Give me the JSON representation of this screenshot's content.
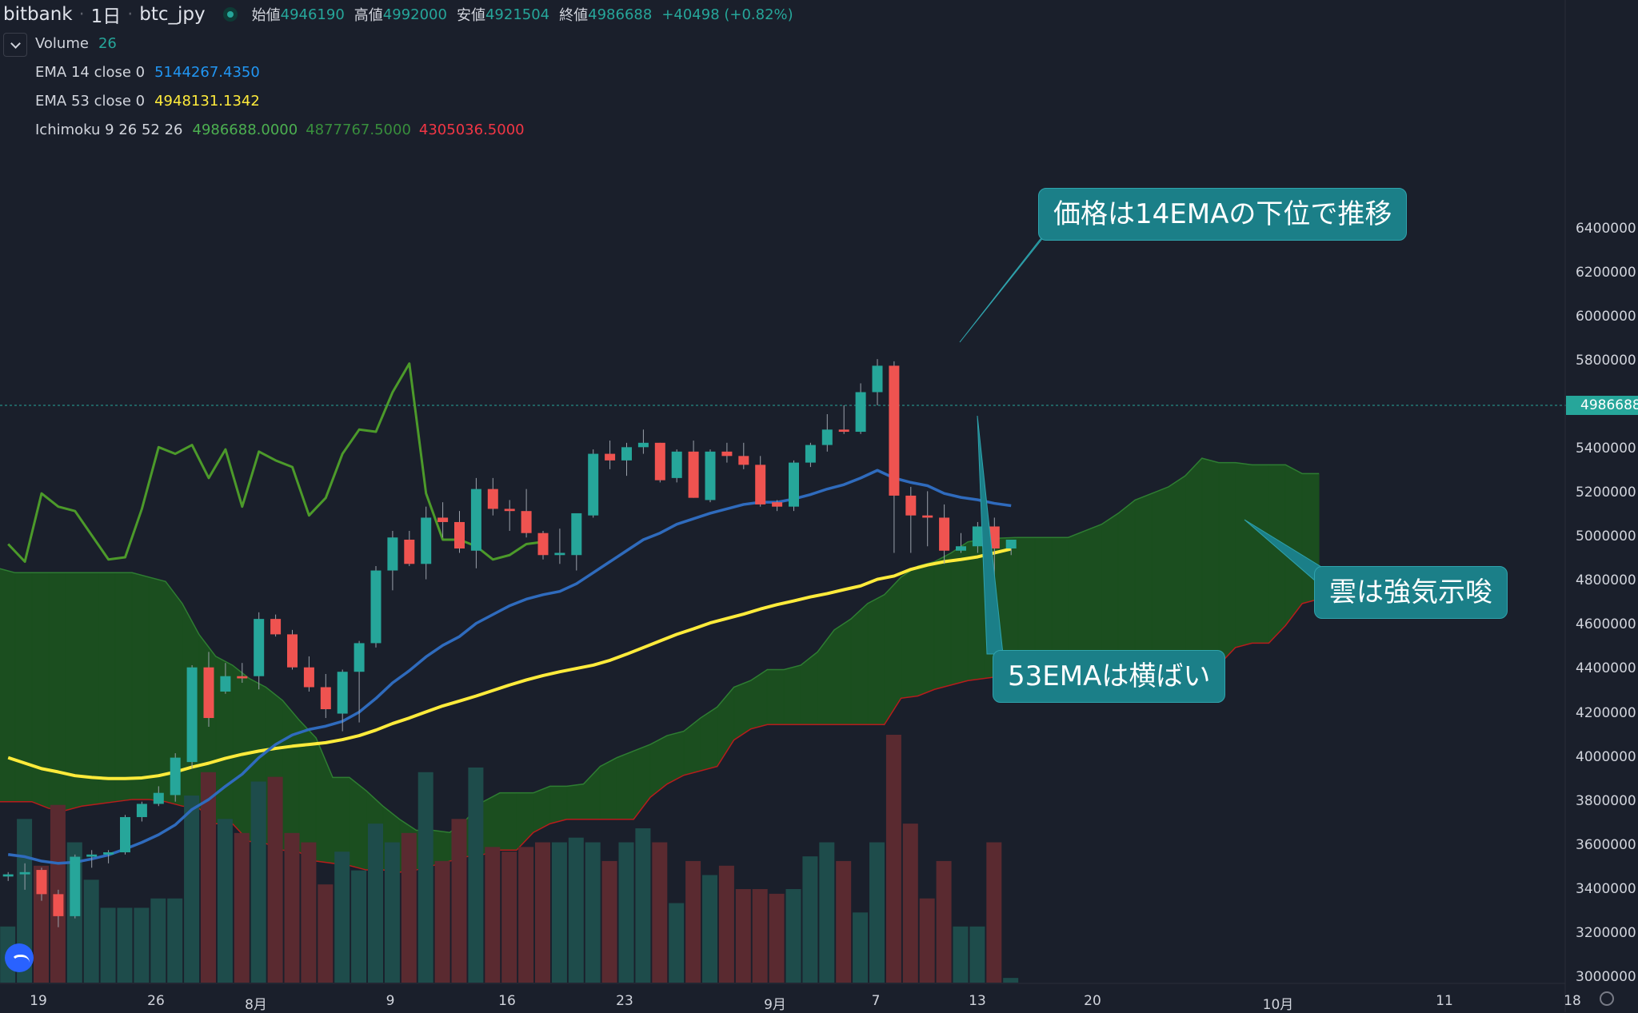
{
  "header": {
    "exchange": "bitbank",
    "interval": "1日",
    "symbol": "btc_jpy",
    "ohlc": [
      {
        "label": "始値",
        "value": "4946190"
      },
      {
        "label": "高値",
        "value": "4992000"
      },
      {
        "label": "安値",
        "value": "4921504"
      },
      {
        "label": "終値",
        "value": "4986688"
      }
    ],
    "change": "+40498 (+0.82%)"
  },
  "indicators": {
    "volume": {
      "name": "Volume",
      "value": "26"
    },
    "ema14": {
      "name": "EMA 14 close 0",
      "value": "5144267.4350",
      "color": "#2196f3"
    },
    "ema53": {
      "name": "EMA 53 close 0",
      "value": "4948131.1342",
      "color": "#ffeb3b"
    },
    "ichimoku": {
      "name": "Ichimoku 9 26 52 26",
      "v1": "4986688.0000",
      "v2": "4877767.5000",
      "v3": "4305036.5000",
      "c1": "#4caf50",
      "c2": "#388e3c",
      "c3": "#f23645"
    }
  },
  "annotations": {
    "a1": "価格は14EMAの下位で推移",
    "a2": "雲は強気示唆",
    "a3": "53EMAは横ばい"
  },
  "price_tag": "4986688",
  "colors": {
    "up": "#26a69a",
    "down": "#ef5350",
    "background": "#1a1f2b",
    "bear_cloud": "#7f1519",
    "bull_cloud": "#1b4e1f"
  },
  "y_ticks": [
    "6400000",
    "6200000",
    "6000000",
    "5800000",
    "5600000",
    "5400000",
    "5200000",
    "5000000",
    "4800000",
    "4600000",
    "4400000",
    "4200000",
    "4000000",
    "3800000",
    "3600000",
    "3400000",
    "3200000",
    "3000000"
  ],
  "x_ticks": [
    "19",
    "26",
    "8月",
    "9",
    "16",
    "23",
    "9月",
    "7",
    "13",
    "20",
    "10月",
    "11",
    "18"
  ],
  "chart_data": {
    "type": "candlestick",
    "y_range": [
      3000000,
      6400000
    ],
    "ohlc": [
      [
        3460000,
        3480000,
        3440000,
        3470000
      ],
      [
        3470000,
        3520000,
        3400000,
        3480000
      ],
      [
        3490000,
        3500000,
        3350000,
        3380000
      ],
      [
        3380000,
        3400000,
        3230000,
        3280000
      ],
      [
        3280000,
        3560000,
        3270000,
        3550000
      ],
      [
        3550000,
        3580000,
        3500000,
        3560000
      ],
      [
        3560000,
        3580000,
        3520000,
        3570000
      ],
      [
        3570000,
        3740000,
        3560000,
        3730000
      ],
      [
        3730000,
        3800000,
        3710000,
        3790000
      ],
      [
        3790000,
        3870000,
        3780000,
        3840000
      ],
      [
        3830000,
        4020000,
        3800000,
        4000000
      ],
      [
        3980000,
        4420000,
        3950000,
        4410000
      ],
      [
        4410000,
        4480000,
        4140000,
        4180000
      ],
      [
        4300000,
        4430000,
        4290000,
        4370000
      ],
      [
        4370000,
        4430000,
        4340000,
        4360000
      ],
      [
        4370000,
        4660000,
        4310000,
        4630000
      ],
      [
        4630000,
        4650000,
        4550000,
        4560000
      ],
      [
        4560000,
        4580000,
        4400000,
        4410000
      ],
      [
        4410000,
        4460000,
        4300000,
        4320000
      ],
      [
        4320000,
        4380000,
        4180000,
        4220000
      ],
      [
        4200000,
        4400000,
        4120000,
        4390000
      ],
      [
        4390000,
        4530000,
        4160000,
        4520000
      ],
      [
        4520000,
        4870000,
        4500000,
        4850000
      ],
      [
        4850000,
        5030000,
        4760000,
        5000000
      ],
      [
        4990000,
        5030000,
        4870000,
        4880000
      ],
      [
        4880000,
        5140000,
        4810000,
        5090000
      ],
      [
        5090000,
        5160000,
        5000000,
        5070000
      ],
      [
        5070000,
        5120000,
        4930000,
        4950000
      ],
      [
        4940000,
        5270000,
        4860000,
        5220000
      ],
      [
        5220000,
        5270000,
        5100000,
        5130000
      ],
      [
        5130000,
        5170000,
        5030000,
        5120000
      ],
      [
        5120000,
        5220000,
        5000000,
        5020000
      ],
      [
        5020000,
        5030000,
        4900000,
        4920000
      ],
      [
        4920000,
        5040000,
        4880000,
        4930000
      ],
      [
        4920000,
        5100000,
        4850000,
        5110000
      ],
      [
        5100000,
        5400000,
        5090000,
        5380000
      ],
      [
        5380000,
        5440000,
        5310000,
        5350000
      ],
      [
        5350000,
        5430000,
        5280000,
        5410000
      ],
      [
        5410000,
        5490000,
        5380000,
        5430000
      ],
      [
        5430000,
        5430000,
        5250000,
        5260000
      ],
      [
        5270000,
        5400000,
        5250000,
        5390000
      ],
      [
        5390000,
        5440000,
        5180000,
        5180000
      ],
      [
        5170000,
        5400000,
        5160000,
        5390000
      ],
      [
        5390000,
        5430000,
        5340000,
        5370000
      ],
      [
        5370000,
        5430000,
        5310000,
        5330000
      ],
      [
        5330000,
        5370000,
        5140000,
        5150000
      ],
      [
        5160000,
        5170000,
        5120000,
        5140000
      ],
      [
        5140000,
        5350000,
        5120000,
        5340000
      ],
      [
        5340000,
        5430000,
        5320000,
        5420000
      ],
      [
        5420000,
        5560000,
        5390000,
        5490000
      ],
      [
        5490000,
        5600000,
        5470000,
        5480000
      ],
      [
        5480000,
        5700000,
        5470000,
        5660000
      ],
      [
        5660000,
        5810000,
        5600000,
        5780000
      ],
      [
        5780000,
        5800000,
        4930000,
        5190000
      ],
      [
        5190000,
        5230000,
        4930000,
        5100000
      ],
      [
        5100000,
        5210000,
        4960000,
        5090000
      ],
      [
        5090000,
        5150000,
        4880000,
        4940000
      ],
      [
        4940000,
        5020000,
        4930000,
        4960000
      ],
      [
        4960000,
        5070000,
        4930000,
        5050000
      ],
      [
        5050000,
        5090000,
        4800000,
        4950000
      ],
      [
        4950000,
        4990000,
        4920000,
        4990000
      ]
    ],
    "volume": [
      12,
      35,
      25,
      38,
      30,
      22,
      16,
      16,
      16,
      18,
      18,
      40,
      45,
      35,
      32,
      43,
      44,
      32,
      30,
      21,
      28,
      24,
      34,
      30,
      32,
      45,
      26,
      35,
      46,
      29,
      28,
      29,
      30,
      30,
      31,
      30,
      26,
      30,
      33,
      30,
      17,
      26,
      23,
      25,
      20,
      20,
      19,
      20,
      27,
      30,
      26,
      15,
      30,
      53,
      34,
      18,
      26,
      12,
      12,
      30,
      1
    ],
    "ema14": [
      3560000,
      3550000,
      3530000,
      3520000,
      3525000,
      3540000,
      3558000,
      3585000,
      3615000,
      3650000,
      3695000,
      3765000,
      3810000,
      3870000,
      3925000,
      4000000,
      4060000,
      4103000,
      4128000,
      4143000,
      4165000,
      4207000,
      4269000,
      4340000,
      4395000,
      4458000,
      4510000,
      4550000,
      4610000,
      4650000,
      4690000,
      4720000,
      4740000,
      4755000,
      4790000,
      4840000,
      4890000,
      4940000,
      4990000,
      5020000,
      5060000,
      5085000,
      5110000,
      5130000,
      5150000,
      5160000,
      5160000,
      5175000,
      5195000,
      5220000,
      5240000,
      5270000,
      5305000,
      5270000,
      5250000,
      5235000,
      5200000,
      5182000,
      5171000,
      5155000,
      5144267
    ],
    "ema53": [
      4000000,
      3975000,
      3950000,
      3935000,
      3918000,
      3910000,
      3905000,
      3905000,
      3908000,
      3918000,
      3935000,
      3957000,
      3975000,
      3997000,
      4015000,
      4030000,
      4042000,
      4052000,
      4060000,
      4068000,
      4082000,
      4100000,
      4125000,
      4155000,
      4180000,
      4208000,
      4235000,
      4257000,
      4280000,
      4305000,
      4330000,
      4353000,
      4373000,
      4390000,
      4405000,
      4420000,
      4442000,
      4470000,
      4500000,
      4530000,
      4560000,
      4585000,
      4612000,
      4632000,
      4652000,
      4675000,
      4695000,
      4712000,
      4730000,
      4745000,
      4763000,
      4780000,
      4810000,
      4825000,
      4855000,
      4875000,
      4890000,
      4900000,
      4912000,
      4930000,
      4948131
    ],
    "lagging_span": [
      4970000,
      4890000,
      5200000,
      5140000,
      5120000,
      5010000,
      4900000,
      4910000,
      5130000,
      5410000,
      5380000,
      5420000,
      5270000,
      5400000,
      5140000,
      5390000,
      5350000,
      5320000,
      5100000,
      5180000,
      5380000,
      5490000,
      5480000,
      5660000,
      5790000,
      5200000,
      4990000,
      4990000,
      4960000,
      4900000,
      4920000,
      4970000,
      4980000
    ],
    "cloud_span_a": [
      4860000,
      4840000,
      4840000,
      4840000,
      4840000,
      4840000,
      4840000,
      4840000,
      4840000,
      4820000,
      4800000,
      4700000,
      4560000,
      4460000,
      4420000,
      4360000,
      4320000,
      4260000,
      4170000,
      4090000,
      3910000,
      3910000,
      3850000,
      3780000,
      3720000,
      3670000,
      3670000,
      3660000,
      3720000,
      3800000,
      3840000,
      3840000,
      3840000,
      3870000,
      3870000,
      3880000,
      3960000,
      4000000,
      4030000,
      4060000,
      4100000,
      4120000,
      4180000,
      4230000,
      4320000,
      4350000,
      4400000,
      4400000,
      4420000,
      4480000,
      4580000,
      4630000,
      4700000,
      4740000,
      4820000,
      4870000,
      4890000,
      4930000,
      4980000,
      4993000,
      4997000,
      5000000,
      5000000,
      5000000,
      5000000,
      5030000,
      5060000,
      5110000,
      5170000,
      5200000,
      5230000,
      5280000,
      5360000,
      5340000,
      5340000,
      5330000,
      5330000,
      5330000,
      5290000,
      5290000
    ],
    "cloud_span_b": [
      3800000,
      3800000,
      3800000,
      3770000,
      3760000,
      3780000,
      3790000,
      3800000,
      3810000,
      3810000,
      3800000,
      3780000,
      3770000,
      3700000,
      3700000,
      3620000,
      3610000,
      3580000,
      3570000,
      3530000,
      3520000,
      3510000,
      3490000,
      3490000,
      3480000,
      3490000,
      3510000,
      3530000,
      3550000,
      3560000,
      3580000,
      3580000,
      3660000,
      3700000,
      3720000,
      3720000,
      3720000,
      3720000,
      3720000,
      3820000,
      3880000,
      3920000,
      3940000,
      3960000,
      4080000,
      4130000,
      4150000,
      4150000,
      4150000,
      4150000,
      4150000,
      4150000,
      4150000,
      4150000,
      4270000,
      4280000,
      4310000,
      4330000,
      4350000,
      4360000,
      4370000,
      4380000,
      4380000,
      4380000,
      4380000,
      4380000,
      4380000,
      4380000,
      4380000,
      4380000,
      4390000,
      4400000,
      4400000,
      4420000,
      4500000,
      4520000,
      4520000,
      4600000,
      4700000,
      4720000,
      4760000,
      4780000
    ]
  }
}
